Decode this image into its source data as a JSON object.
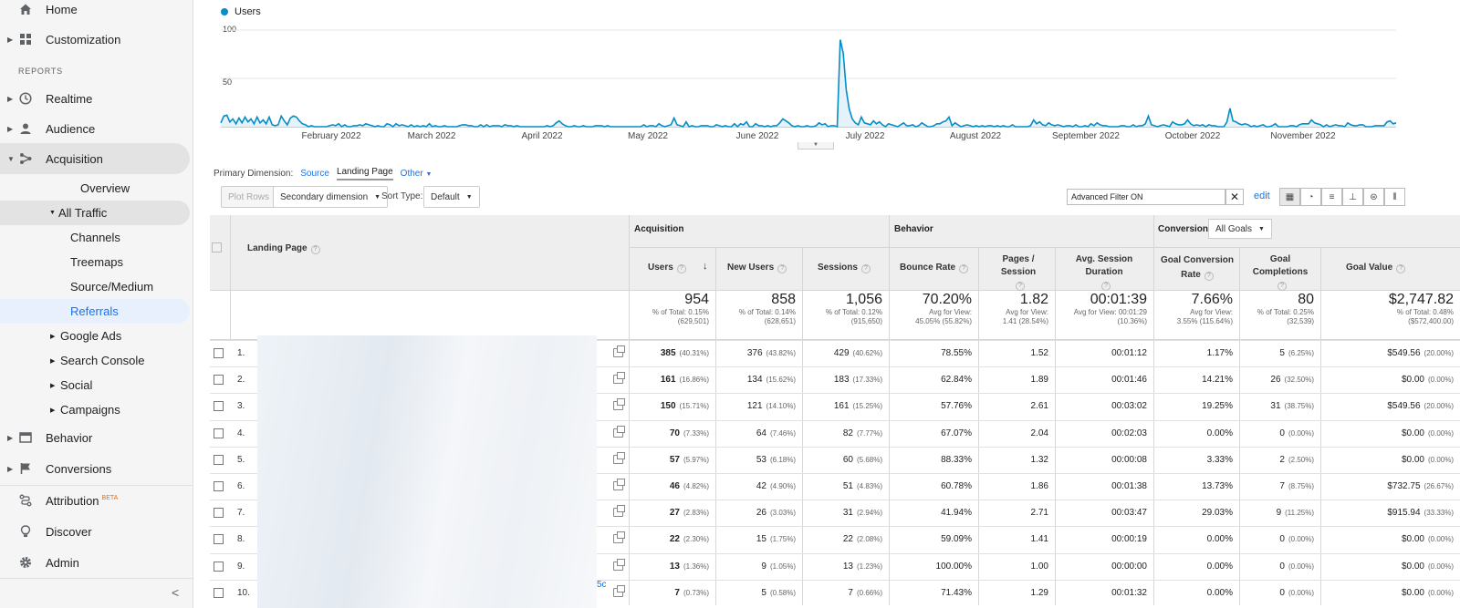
{
  "sidebar": {
    "top_items": [
      {
        "label": "Home",
        "icon": "home-icon"
      },
      {
        "label": "Customization",
        "icon": "grid-icon"
      }
    ],
    "reports_header": "REPORTS",
    "report_items": [
      {
        "label": "Realtime",
        "icon": "clock-icon"
      },
      {
        "label": "Audience",
        "icon": "person-icon"
      },
      {
        "label": "Acquisition",
        "icon": "acquisition-icon"
      }
    ],
    "acquisition_sub": {
      "overview": "Overview",
      "all_traffic": "All Traffic",
      "all_traffic_children": [
        "Channels",
        "Treemaps",
        "Source/Medium",
        "Referrals"
      ],
      "others": [
        "Google Ads",
        "Search Console",
        "Social",
        "Campaigns"
      ]
    },
    "bottom_items": [
      {
        "label": "Behavior",
        "icon": "behavior-icon"
      },
      {
        "label": "Conversions",
        "icon": "flag-icon"
      },
      {
        "label": "Attribution",
        "icon": "attribution-icon",
        "badge": "BETA"
      },
      {
        "label": "Discover",
        "icon": "lightbulb-icon"
      },
      {
        "label": "Admin",
        "icon": "gear-icon"
      }
    ]
  },
  "chart": {
    "legend": "Users",
    "color": "#058dc7"
  },
  "chart_data": {
    "type": "line",
    "series": [
      {
        "name": "Users",
        "values": [
          4,
          11,
          12,
          5,
          8,
          3,
          9,
          4,
          10,
          5,
          8,
          3,
          10,
          4,
          7,
          3,
          10,
          2,
          1,
          2,
          11,
          6,
          2,
          9,
          11,
          10,
          6,
          3,
          2,
          0,
          1,
          0,
          0,
          0,
          0,
          0,
          1,
          2,
          1,
          3,
          0,
          2,
          0,
          0,
          1,
          1,
          2,
          1,
          3,
          2,
          1,
          0,
          1,
          0,
          0,
          3,
          2,
          0,
          3,
          1,
          2,
          1,
          0,
          2,
          0,
          1,
          0,
          1,
          0,
          3,
          0,
          1,
          0,
          0,
          1,
          0,
          0,
          0,
          0,
          1,
          2,
          2,
          1,
          1,
          0,
          0,
          2,
          0,
          2,
          0,
          1,
          1,
          1,
          0,
          2,
          1,
          1,
          0,
          1,
          0,
          0,
          0,
          0,
          0,
          0,
          0,
          0,
          0,
          1,
          0,
          1,
          4,
          6,
          3,
          1,
          0,
          0,
          1,
          0,
          0,
          1,
          0,
          0,
          0,
          1,
          1,
          1,
          0,
          1,
          0,
          0,
          0,
          0,
          0,
          0,
          0,
          0,
          0,
          0,
          0,
          2,
          0,
          1,
          1,
          0,
          3,
          1,
          0,
          1,
          2,
          9,
          2,
          1,
          0,
          5,
          0,
          1,
          0,
          0,
          1,
          1,
          1,
          0,
          0,
          2,
          1,
          0,
          1,
          0,
          0,
          3,
          0,
          3,
          2,
          5,
          0,
          0,
          3,
          1,
          1,
          0,
          1,
          0,
          1,
          1,
          4,
          8,
          6,
          4,
          1,
          0,
          1,
          0,
          0,
          1,
          0,
          0,
          1,
          4,
          2,
          3,
          0,
          1,
          1,
          0,
          90,
          76,
          38,
          18,
          8,
          4,
          2,
          10,
          4,
          3,
          2,
          6,
          3,
          5,
          2,
          0,
          3,
          2,
          1,
          0,
          2,
          4,
          1,
          1,
          2,
          0,
          1,
          4,
          2,
          0,
          0,
          1,
          3,
          3,
          5,
          6,
          10,
          1,
          4,
          2,
          0,
          1,
          2,
          1,
          0,
          1,
          0,
          1,
          0,
          1,
          1,
          0,
          1,
          0,
          1,
          0,
          0,
          2,
          0,
          0,
          0,
          0,
          0,
          1,
          7,
          3,
          5,
          2,
          1,
          4,
          2,
          1,
          2,
          1,
          0,
          1,
          1,
          0,
          2,
          0,
          0,
          1,
          0,
          3,
          1,
          4,
          2,
          1,
          1,
          0,
          0,
          0,
          0,
          1,
          1,
          0,
          0,
          2,
          0,
          1,
          1,
          3,
          11,
          2,
          1,
          0,
          1,
          2,
          1,
          0,
          5,
          3,
          2,
          2,
          3,
          7,
          3,
          1,
          2,
          1,
          2,
          0,
          2,
          1,
          1,
          0,
          0,
          0,
          5,
          19,
          6,
          5,
          3,
          2,
          3,
          2,
          0,
          1,
          0,
          1,
          2,
          0,
          0,
          1,
          3,
          0,
          0,
          0,
          0,
          1,
          1,
          0,
          2,
          3,
          3,
          3,
          7,
          4,
          3,
          2,
          0,
          2,
          0,
          1,
          2,
          1,
          1,
          0,
          4,
          2,
          1,
          1,
          2,
          2,
          0,
          0,
          0,
          1,
          1,
          1,
          1,
          5,
          6,
          3,
          4
        ]
      }
    ],
    "x_labels": [
      "February 2022",
      "March 2022",
      "April 2022",
      "May 2022",
      "June 2022",
      "July 2022",
      "August 2022",
      "September 2022",
      "October 2022",
      "November 2022"
    ],
    "y_ticks": [
      "100",
      "50"
    ],
    "ylim": [
      0,
      100
    ]
  },
  "dimension_row": {
    "label": "Primary Dimension:",
    "source": "Source",
    "landing_page": "Landing Page",
    "other": "Other"
  },
  "toolbar": {
    "plot_rows": "Plot Rows",
    "secondary_dimension": "Secondary dimension",
    "sort_type_label": "Sort Type:",
    "sort_type_value": "Default",
    "advanced_filter": "Advanced Filter ON",
    "edit": "edit"
  },
  "table": {
    "col_landing_page": "Landing Page",
    "group_acquisition": "Acquisition",
    "group_behavior": "Behavior",
    "group_conversions": "Conversions",
    "conversions_select": "All Goals",
    "columns": [
      "Users",
      "New Users",
      "Sessions",
      "Bounce Rate",
      "Pages / Session",
      "Avg. Session Duration",
      "Goal Conversion Rate",
      "Goal Completions",
      "Goal Value"
    ],
    "totals": [
      {
        "value": "954",
        "sub1": "% of Total: 0.15%",
        "sub2": "(629,501)"
      },
      {
        "value": "858",
        "sub1": "% of Total: 0.14%",
        "sub2": "(628,651)"
      },
      {
        "value": "1,056",
        "sub1": "% of Total: 0.12%",
        "sub2": "(915,650)"
      },
      {
        "value": "70.20%",
        "sub1": "Avg for View:",
        "sub2": "45.05% (55.82%)"
      },
      {
        "value": "1.82",
        "sub1": "Avg for View:",
        "sub2": "1.41 (28.54%)"
      },
      {
        "value": "00:01:39",
        "sub1": "Avg for View: 00:01:29",
        "sub2": "(10.36%)"
      },
      {
        "value": "7.66%",
        "sub1": "Avg for View:",
        "sub2": "3.55% (115.64%)"
      },
      {
        "value": "80",
        "sub1": "% of Total: 0.25%",
        "sub2": "(32,539)"
      },
      {
        "value": "$2,747.82",
        "sub1": "% of Total: 0.48%",
        "sub2": "($572,400.00)"
      }
    ],
    "rows": [
      {
        "n": "1.",
        "users": "385",
        "users_pct": "(40.31%)",
        "new": "376",
        "new_pct": "(43.82%)",
        "sess": "429",
        "sess_pct": "(40.62%)",
        "bounce": "78.55%",
        "pps": "1.52",
        "dur": "00:01:12",
        "gcr": "1.17%",
        "gc": "5",
        "gc_pct": "(6.25%)",
        "gv": "$549.56",
        "gv_pct": "(20.00%)"
      },
      {
        "n": "2.",
        "users": "161",
        "users_pct": "(16.86%)",
        "new": "134",
        "new_pct": "(15.62%)",
        "sess": "183",
        "sess_pct": "(17.33%)",
        "bounce": "62.84%",
        "pps": "1.89",
        "dur": "00:01:46",
        "gcr": "14.21%",
        "gc": "26",
        "gc_pct": "(32.50%)",
        "gv": "$0.00",
        "gv_pct": "(0.00%)"
      },
      {
        "n": "3.",
        "users": "150",
        "users_pct": "(15.71%)",
        "new": "121",
        "new_pct": "(14.10%)",
        "sess": "161",
        "sess_pct": "(15.25%)",
        "bounce": "57.76%",
        "pps": "2.61",
        "dur": "00:03:02",
        "gcr": "19.25%",
        "gc": "31",
        "gc_pct": "(38.75%)",
        "gv": "$549.56",
        "gv_pct": "(20.00%)"
      },
      {
        "n": "4.",
        "users": "70",
        "users_pct": "(7.33%)",
        "new": "64",
        "new_pct": "(7.46%)",
        "sess": "82",
        "sess_pct": "(7.77%)",
        "bounce": "67.07%",
        "pps": "2.04",
        "dur": "00:02:03",
        "gcr": "0.00%",
        "gc": "0",
        "gc_pct": "(0.00%)",
        "gv": "$0.00",
        "gv_pct": "(0.00%)"
      },
      {
        "n": "5.",
        "users": "57",
        "users_pct": "(5.97%)",
        "new": "53",
        "new_pct": "(6.18%)",
        "sess": "60",
        "sess_pct": "(5.68%)",
        "bounce": "88.33%",
        "pps": "1.32",
        "dur": "00:00:08",
        "gcr": "3.33%",
        "gc": "2",
        "gc_pct": "(2.50%)",
        "gv": "$0.00",
        "gv_pct": "(0.00%)"
      },
      {
        "n": "6.",
        "users": "46",
        "users_pct": "(4.82%)",
        "new": "42",
        "new_pct": "(4.90%)",
        "sess": "51",
        "sess_pct": "(4.83%)",
        "bounce": "60.78%",
        "pps": "1.86",
        "dur": "00:01:38",
        "gcr": "13.73%",
        "gc": "7",
        "gc_pct": "(8.75%)",
        "gv": "$732.75",
        "gv_pct": "(26.67%)"
      },
      {
        "n": "7.",
        "users": "27",
        "users_pct": "(2.83%)",
        "new": "26",
        "new_pct": "(3.03%)",
        "sess": "31",
        "sess_pct": "(2.94%)",
        "bounce": "41.94%",
        "pps": "2.71",
        "dur": "00:03:47",
        "gcr": "29.03%",
        "gc": "9",
        "gc_pct": "(11.25%)",
        "gv": "$915.94",
        "gv_pct": "(33.33%)"
      },
      {
        "n": "8.",
        "users": "22",
        "users_pct": "(2.30%)",
        "new": "15",
        "new_pct": "(1.75%)",
        "sess": "22",
        "sess_pct": "(2.08%)",
        "bounce": "59.09%",
        "pps": "1.41",
        "dur": "00:00:19",
        "gcr": "0.00%",
        "gc": "0",
        "gc_pct": "(0.00%)",
        "gv": "$0.00",
        "gv_pct": "(0.00%)"
      },
      {
        "n": "9.",
        "users": "13",
        "users_pct": "(1.36%)",
        "new": "9",
        "new_pct": "(1.05%)",
        "sess": "13",
        "sess_pct": "(1.23%)",
        "bounce": "100.00%",
        "pps": "1.00",
        "dur": "00:00:00",
        "gcr": "0.00%",
        "gc": "0",
        "gc_pct": "(0.00%)",
        "gv": "$0.00",
        "gv_pct": "(0.00%)"
      },
      {
        "n": "10.",
        "users": "7",
        "users_pct": "(0.73%)",
        "new": "5",
        "new_pct": "(0.58%)",
        "sess": "7",
        "sess_pct": "(0.66%)",
        "bounce": "71.43%",
        "pps": "1.29",
        "dur": "00:01:32",
        "gcr": "0.00%",
        "gc": "0",
        "gc_pct": "(0.00%)",
        "gv": "$0.00",
        "gv_pct": "(0.00%)"
      }
    ],
    "truncated_link": "5c"
  }
}
